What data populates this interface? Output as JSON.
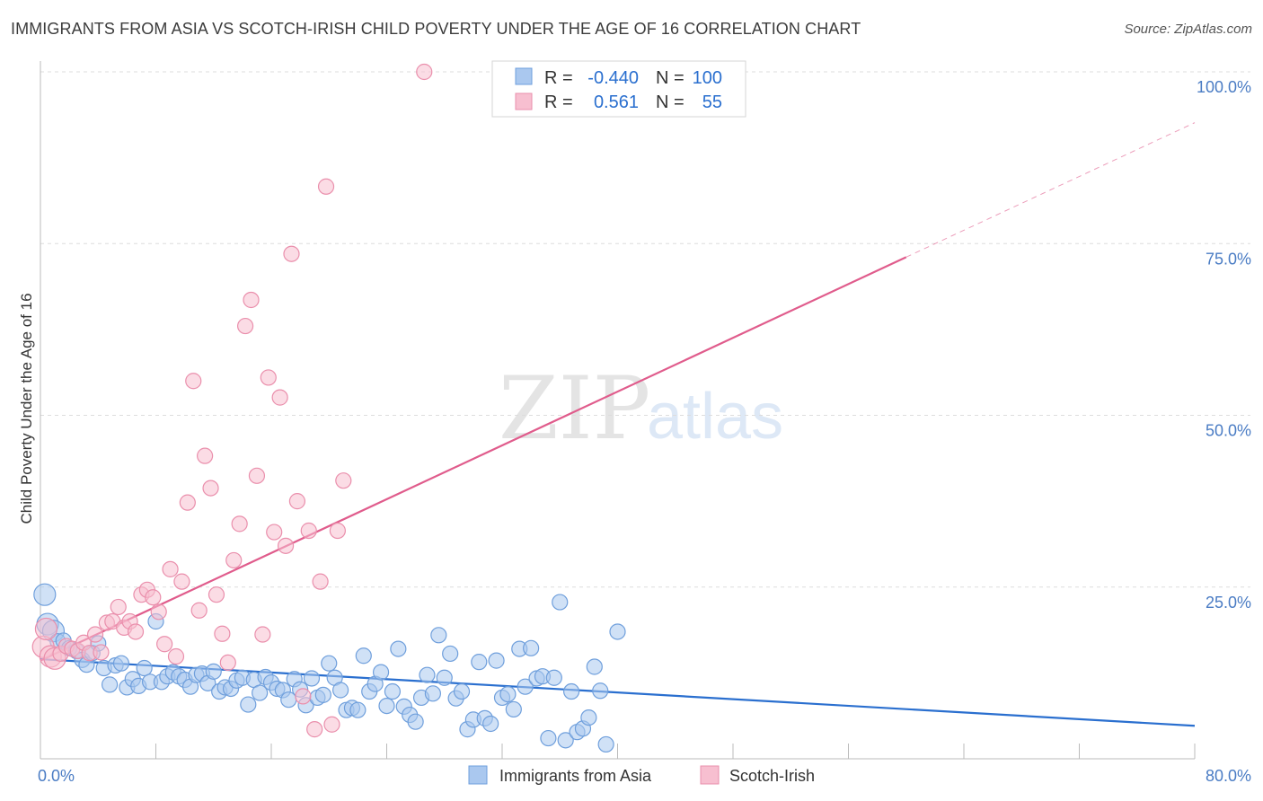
{
  "title": "IMMIGRANTS FROM ASIA VS SCOTCH-IRISH CHILD POVERTY UNDER THE AGE OF 16 CORRELATION CHART",
  "source": "Source: ZipAtlas.com",
  "watermark": {
    "zip": "ZIP",
    "atlas": "atlas"
  },
  "colors": {
    "blue_fill": "#aac8ef",
    "blue_stroke": "#6f9fdc",
    "blue_line": "#2a6fcf",
    "pink_fill": "#f7bfd0",
    "pink_stroke": "#ea8fac",
    "pink_line": "#e05c8c",
    "tick_text": "#4a7cc4",
    "grid": "#dddddd"
  },
  "legend": {
    "r_label": "R =",
    "n_label": "N =",
    "rows": [
      {
        "r": "-0.440",
        "n": "100"
      },
      {
        "r": "0.561",
        "n": "55"
      }
    ]
  },
  "chart_data": {
    "type": "scatter",
    "xlabel": "",
    "ylabel": "Child Poverty Under the Age of 16",
    "xlim": [
      0,
      80
    ],
    "ylim": [
      0,
      100
    ],
    "x_tick_labels": [
      "0.0%",
      "80.0%"
    ],
    "y_ticks": [
      25,
      50,
      75,
      100
    ],
    "y_tick_labels": [
      "25.0%",
      "50.0%",
      "75.0%",
      "100.0%"
    ],
    "grid": "horizontal-dashed",
    "legend_position": "top-center",
    "series": [
      {
        "name": "Immigrants from Asia",
        "color": "#aac8ef",
        "trend": {
          "x0": 0,
          "y0": 14.5,
          "x1": 80,
          "y1": 4.8,
          "x_end_solid": 80
        },
        "points": [
          [
            0.3,
            23.9
          ],
          [
            0.5,
            19.6
          ],
          [
            0.9,
            18.6
          ],
          [
            1.2,
            17.1
          ],
          [
            1.6,
            17.2
          ],
          [
            2.0,
            16.1
          ],
          [
            2.5,
            15.7
          ],
          [
            2.9,
            14.4
          ],
          [
            3.2,
            13.7
          ],
          [
            3.6,
            15.4
          ],
          [
            4.0,
            16.8
          ],
          [
            4.4,
            13.2
          ],
          [
            4.8,
            10.8
          ],
          [
            5.2,
            13.6
          ],
          [
            5.6,
            13.9
          ],
          [
            6.0,
            10.4
          ],
          [
            6.4,
            11.6
          ],
          [
            6.8,
            10.6
          ],
          [
            7.2,
            13.2
          ],
          [
            7.6,
            11.2
          ],
          [
            8.0,
            20.0
          ],
          [
            8.4,
            11.2
          ],
          [
            8.8,
            12.0
          ],
          [
            9.2,
            12.6
          ],
          [
            9.6,
            12.0
          ],
          [
            10.0,
            11.5
          ],
          [
            10.4,
            10.5
          ],
          [
            10.8,
            12.2
          ],
          [
            11.2,
            12.4
          ],
          [
            11.6,
            11.0
          ],
          [
            12.0,
            12.7
          ],
          [
            12.4,
            9.8
          ],
          [
            12.8,
            10.4
          ],
          [
            13.2,
            10.2
          ],
          [
            13.6,
            11.4
          ],
          [
            14.0,
            11.8
          ],
          [
            14.4,
            7.9
          ],
          [
            14.8,
            11.5
          ],
          [
            15.2,
            9.6
          ],
          [
            15.6,
            11.9
          ],
          [
            16.0,
            11.1
          ],
          [
            16.4,
            10.2
          ],
          [
            16.8,
            10.0
          ],
          [
            17.2,
            8.6
          ],
          [
            17.6,
            11.6
          ],
          [
            18.0,
            10.1
          ],
          [
            18.4,
            7.8
          ],
          [
            18.8,
            11.7
          ],
          [
            19.2,
            8.9
          ],
          [
            19.6,
            9.3
          ],
          [
            20.0,
            13.9
          ],
          [
            20.4,
            11.8
          ],
          [
            20.8,
            10.0
          ],
          [
            21.2,
            7.1
          ],
          [
            21.6,
            7.4
          ],
          [
            22.0,
            7.1
          ],
          [
            22.4,
            15.0
          ],
          [
            22.8,
            9.8
          ],
          [
            23.2,
            10.9
          ],
          [
            23.6,
            12.6
          ],
          [
            24.0,
            7.7
          ],
          [
            24.4,
            9.8
          ],
          [
            24.8,
            16.0
          ],
          [
            25.2,
            7.6
          ],
          [
            25.6,
            6.4
          ],
          [
            26.0,
            5.4
          ],
          [
            26.4,
            8.9
          ],
          [
            26.8,
            12.2
          ],
          [
            27.2,
            9.5
          ],
          [
            27.6,
            18.0
          ],
          [
            28.0,
            11.8
          ],
          [
            28.4,
            15.3
          ],
          [
            28.8,
            8.8
          ],
          [
            29.2,
            9.8
          ],
          [
            29.6,
            4.3
          ],
          [
            30.0,
            5.7
          ],
          [
            30.4,
            14.1
          ],
          [
            30.8,
            5.9
          ],
          [
            31.2,
            5.1
          ],
          [
            31.6,
            14.3
          ],
          [
            32.0,
            8.9
          ],
          [
            32.4,
            9.4
          ],
          [
            32.8,
            7.2
          ],
          [
            33.2,
            16.0
          ],
          [
            33.6,
            10.5
          ],
          [
            34.0,
            16.1
          ],
          [
            34.4,
            11.7
          ],
          [
            34.8,
            12.0
          ],
          [
            35.2,
            3.0
          ],
          [
            35.6,
            11.8
          ],
          [
            36.0,
            22.8
          ],
          [
            36.4,
            2.7
          ],
          [
            36.8,
            9.8
          ],
          [
            37.2,
            3.9
          ],
          [
            37.6,
            4.4
          ],
          [
            38.0,
            6.0
          ],
          [
            38.4,
            13.4
          ],
          [
            38.8,
            9.9
          ],
          [
            39.2,
            2.1
          ],
          [
            40.0,
            18.5
          ]
        ]
      },
      {
        "name": "Scotch-Irish",
        "color": "#f7bfd0",
        "trend": {
          "x0": 0,
          "y0": 14.3,
          "x1": 80,
          "y1": 92.6,
          "x_end_solid": 60
        },
        "points": [
          [
            0.2,
            16.3
          ],
          [
            0.4,
            18.9
          ],
          [
            0.7,
            14.9
          ],
          [
            1.0,
            14.6
          ],
          [
            1.4,
            15.3
          ],
          [
            1.8,
            16.4
          ],
          [
            2.2,
            16.0
          ],
          [
            2.6,
            15.7
          ],
          [
            3.0,
            16.9
          ],
          [
            3.4,
            15.4
          ],
          [
            3.8,
            18.1
          ],
          [
            4.2,
            15.5
          ],
          [
            4.6,
            19.8
          ],
          [
            5.0,
            20.0
          ],
          [
            5.4,
            22.1
          ],
          [
            5.8,
            19.1
          ],
          [
            6.2,
            20.0
          ],
          [
            6.6,
            18.5
          ],
          [
            7.0,
            23.9
          ],
          [
            7.4,
            24.6
          ],
          [
            7.8,
            23.5
          ],
          [
            8.2,
            21.4
          ],
          [
            8.6,
            16.7
          ],
          [
            9.0,
            27.6
          ],
          [
            9.4,
            14.9
          ],
          [
            9.8,
            25.8
          ],
          [
            10.2,
            37.3
          ],
          [
            10.6,
            55.0
          ],
          [
            11.0,
            21.6
          ],
          [
            11.4,
            44.1
          ],
          [
            11.8,
            39.4
          ],
          [
            12.2,
            23.9
          ],
          [
            12.6,
            18.2
          ],
          [
            13.0,
            14.0
          ],
          [
            13.4,
            28.9
          ],
          [
            13.8,
            34.2
          ],
          [
            14.2,
            63.0
          ],
          [
            14.6,
            66.8
          ],
          [
            15.0,
            41.2
          ],
          [
            15.4,
            18.1
          ],
          [
            15.8,
            55.5
          ],
          [
            16.2,
            33.0
          ],
          [
            16.6,
            52.6
          ],
          [
            17.0,
            31.0
          ],
          [
            17.4,
            73.5
          ],
          [
            17.8,
            37.5
          ],
          [
            18.2,
            9.1
          ],
          [
            18.6,
            33.2
          ],
          [
            19.0,
            4.3
          ],
          [
            19.4,
            25.8
          ],
          [
            19.8,
            83.3
          ],
          [
            20.2,
            5.0
          ],
          [
            20.6,
            33.2
          ],
          [
            21.0,
            40.5
          ],
          [
            26.6,
            100.0
          ]
        ]
      }
    ]
  }
}
